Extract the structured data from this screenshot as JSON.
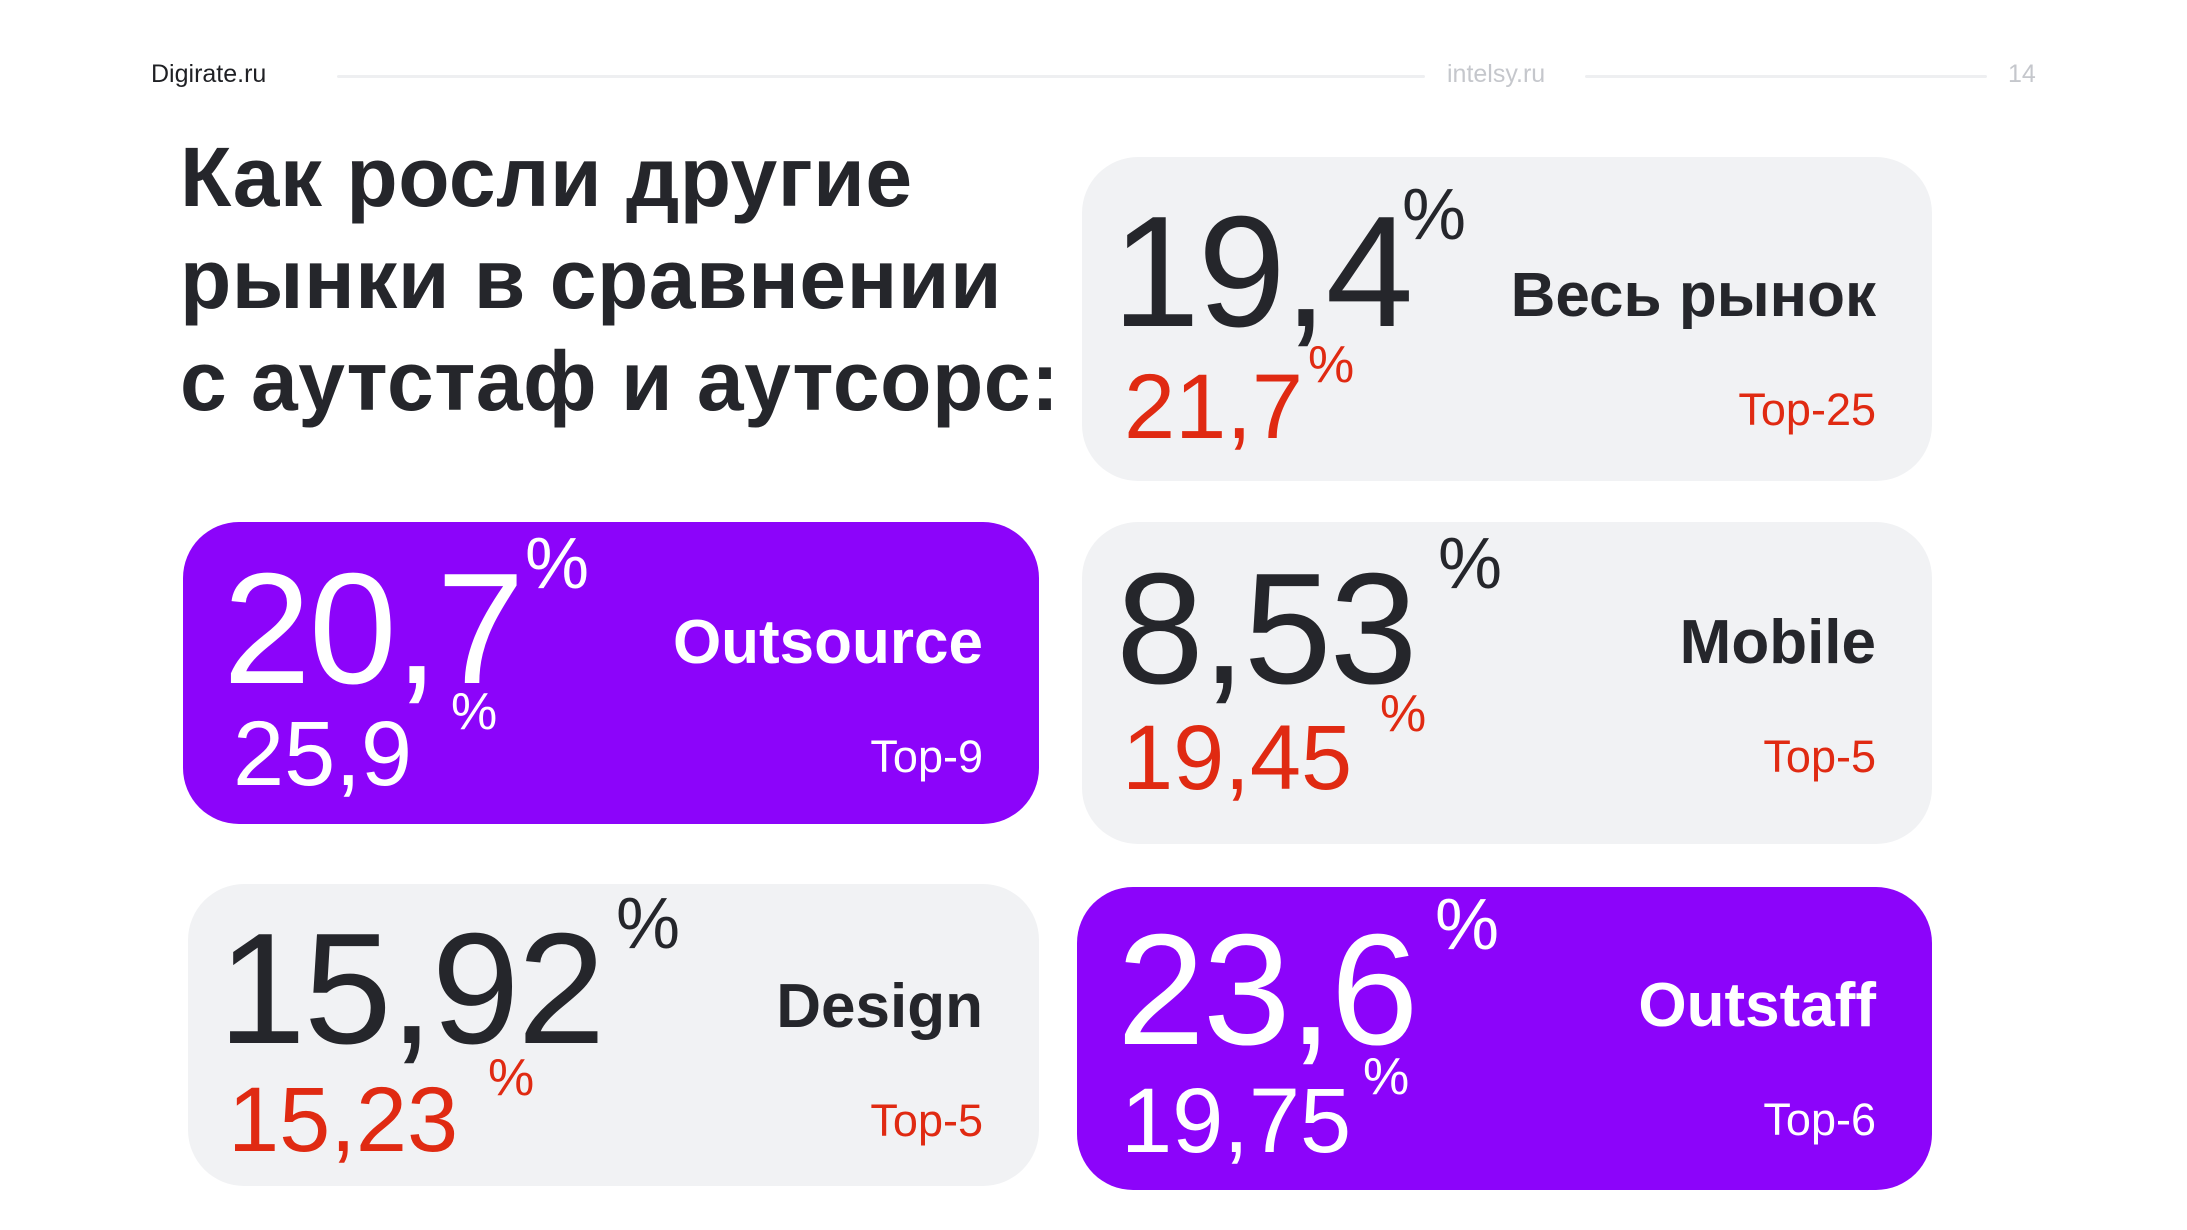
{
  "header": {
    "left_brand": "Digirate.ru",
    "center_brand": "intelsy.ru",
    "page_number": "14"
  },
  "title": {
    "line1": "Как росли другие",
    "line2": "рынки в сравнении",
    "line3": "с аутстаф и аутсорс:"
  },
  "cards": {
    "market": {
      "value": "19,4",
      "value_unit": "%",
      "top_value": "21,7",
      "top_unit": "%",
      "label": "Весь рынок",
      "top_label": "Top-25"
    },
    "outsource": {
      "value": "20,7",
      "value_unit": "%",
      "top_value": "25,9",
      "top_unit": "%",
      "label": "Outsource",
      "top_label": "Top-9"
    },
    "mobile": {
      "value": "8,53",
      "value_unit": "%",
      "top_value": "19,45",
      "top_unit": "%",
      "label": "Mobile",
      "top_label": "Top-5"
    },
    "design": {
      "value": "15,92",
      "value_unit": "%",
      "top_value": "15,23",
      "top_unit": "%",
      "label": "Design",
      "top_label": "Top-5"
    },
    "outstaff": {
      "value": "23,6",
      "value_unit": "%",
      "top_value": "19,75",
      "top_unit": "%",
      "label": "Outstaff",
      "top_label": "Top-6"
    }
  },
  "colors": {
    "accent_purple": "#8c04fa",
    "highlight_red": "#e02a12",
    "card_gray": "#f1f2f4",
    "text_dark": "#25262b"
  }
}
